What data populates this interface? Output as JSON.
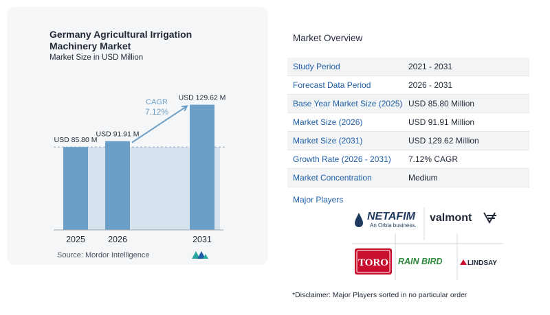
{
  "chart_data": {
    "type": "bar",
    "title": "Germany Agricultural Irrigation Machinery Market",
    "subtitle": "Market Size in USD Million",
    "categories": [
      "2025",
      "2026",
      "2031"
    ],
    "values": [
      85.8,
      91.91,
      129.62
    ],
    "value_labels": [
      "USD 85.80 M",
      "USD 91.91 M",
      "USD 129.62 M"
    ],
    "ylim": [
      0,
      135
    ],
    "bar_color": "#6b9fc7",
    "reference_band_color": "#d6e3ee",
    "cagr_label": "CAGR",
    "cagr_value": "7.12%",
    "source": "Source:  Mordor Intelligence"
  },
  "overview": {
    "title": "Market Overview",
    "rows": [
      {
        "label": "Study Period",
        "value": "2021 - 2031"
      },
      {
        "label": "Forecast Data Period",
        "value": "2026 - 2031"
      },
      {
        "label": "Base Year Market Size (2025)",
        "value": "USD 85.80 Million"
      },
      {
        "label": "Market Size (2026)",
        "value": "USD 91.91 Million"
      },
      {
        "label": "Market Size (2031)",
        "value": "USD 129.62 Million"
      },
      {
        "label": "Growth Rate (2026 - 2031)",
        "value": "7.12% CAGR"
      },
      {
        "label": "Market Concentration",
        "value": "Medium"
      }
    ]
  },
  "players": {
    "title": "Major Players",
    "netafim": "NETAFIM",
    "netafim_tag": "An Orbia business.",
    "valmont": "valmont",
    "toro": "TORO",
    "rainbird": "RAIN BIRD",
    "lindsay": "LINDSAY"
  },
  "disclaimer": "*Disclaimer: Major Players sorted in no particular order"
}
